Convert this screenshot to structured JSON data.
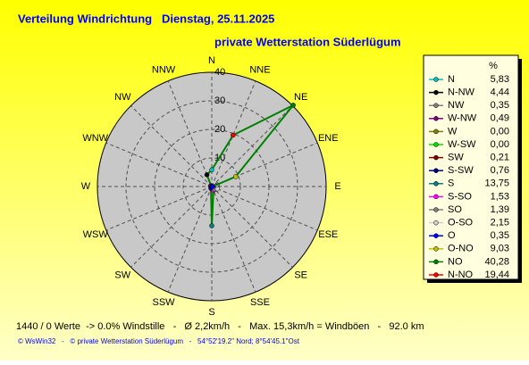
{
  "chart_data": {
    "type": "radar",
    "title": "Verteilung Windrichtung   Dienstag, 25.11.2025",
    "subtitle": "private Wetterstation Süderlügum",
    "categories": [
      "N",
      "NNE",
      "NE",
      "ENE",
      "E",
      "ESE",
      "SE",
      "SSE",
      "S",
      "SSW",
      "SW",
      "WSW",
      "W",
      "WNW",
      "NW",
      "NNW"
    ],
    "rlim": [
      0,
      40
    ],
    "rticks": [
      0,
      10,
      20,
      30,
      40
    ],
    "legend_header": "%",
    "line_color": "#008000",
    "series": [
      {
        "name": "N",
        "color": "#00c0c0",
        "value": 5.83,
        "value_label": "5,83"
      },
      {
        "name": "N-NW",
        "color": "#000000",
        "value": 4.44,
        "value_label": "4,44"
      },
      {
        "name": "NW",
        "color": "#808080",
        "value": 0.35,
        "value_label": "0,35"
      },
      {
        "name": "W-NW",
        "color": "#800080",
        "value": 0.49,
        "value_label": "0,49"
      },
      {
        "name": "W",
        "color": "#808000",
        "value": 0.0,
        "value_label": "0,00"
      },
      {
        "name": "W-SW",
        "color": "#00e000",
        "value": 0.0,
        "value_label": "0,00"
      },
      {
        "name": "SW",
        "color": "#800000",
        "value": 0.21,
        "value_label": "0,21"
      },
      {
        "name": "S-SW",
        "color": "#000080",
        "value": 0.76,
        "value_label": "0,76"
      },
      {
        "name": "S",
        "color": "#008080",
        "value": 13.75,
        "value_label": "13,75"
      },
      {
        "name": "S-SO",
        "color": "#ff00ff",
        "value": 1.53,
        "value_label": "1,53"
      },
      {
        "name": "SO",
        "color": "#808080",
        "value": 1.39,
        "value_label": "1,39"
      },
      {
        "name": "O-SO",
        "color": "#d0d0d0",
        "value": 2.15,
        "value_label": "2,15"
      },
      {
        "name": "O",
        "color": "#0000ff",
        "value": 0.35,
        "value_label": "0,35"
      },
      {
        "name": "O-NO",
        "color": "#c0c000",
        "value": 9.03,
        "value_label": "9,03"
      },
      {
        "name": "NO",
        "color": "#008000",
        "value": 40.28,
        "value_label": "40,28"
      },
      {
        "name": "N-NO",
        "color": "#ff0000",
        "value": 19.44,
        "value_label": "19,44"
      }
    ],
    "footer": "1440 / 0 Werte  -> 0.0% Windstille   -   Ø 2,2km/h   -   Max. 15,3km/h = Windböen   -   92.0 km",
    "copyright": "© WsWin32   -   © private Wetterstation Süderlügum   -   54°52'19.2\" Nord; 8°54'45.1\"Ost"
  }
}
